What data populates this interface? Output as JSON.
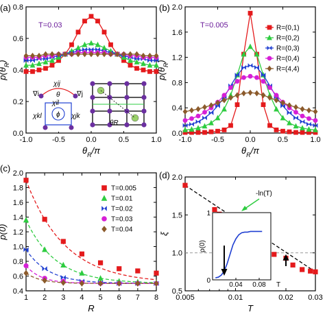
{
  "colors": {
    "red": "#e41a1c",
    "green": "#2ecc40",
    "blue": "#1f3fd1",
    "magenta": "#d61fd6",
    "brown": "#8b5a2b",
    "purple_text": "#6a1b9a",
    "dash_gray": "#999999"
  },
  "chart_data": [
    {
      "panel": "(a)",
      "type": "line",
      "annotation": "T=0.03",
      "xlabel": "θR/π",
      "ylabel": "p(θR)",
      "xlim": [
        -1.0,
        1.0
      ],
      "ylim": [
        0.0,
        0.8
      ],
      "xticks": [
        "-1.0",
        "-0.5",
        "0.0",
        "0.5",
        "1.0"
      ],
      "yticks": [
        "0.0",
        "0.2",
        "0.4",
        "0.6",
        "0.8"
      ],
      "x": [
        -1.0,
        -0.9,
        -0.8,
        -0.7,
        -0.6,
        -0.5,
        -0.4,
        -0.3,
        -0.2,
        -0.1,
        0.0,
        0.1,
        0.2,
        0.3,
        0.4,
        0.5,
        0.6,
        0.7,
        0.8,
        0.9,
        1.0
      ],
      "series": [
        {
          "color": "red",
          "marker": "square",
          "values": [
            0.39,
            0.39,
            0.4,
            0.41,
            0.43,
            0.46,
            0.5,
            0.56,
            0.64,
            0.71,
            0.74,
            0.71,
            0.64,
            0.56,
            0.5,
            0.46,
            0.43,
            0.41,
            0.4,
            0.39,
            0.39
          ]
        },
        {
          "color": "green",
          "marker": "triangle",
          "values": [
            0.43,
            0.43,
            0.44,
            0.45,
            0.46,
            0.48,
            0.5,
            0.52,
            0.54,
            0.56,
            0.57,
            0.56,
            0.54,
            0.52,
            0.5,
            0.48,
            0.46,
            0.45,
            0.44,
            0.43,
            0.43
          ]
        },
        {
          "color": "blue",
          "marker": "bowtie",
          "values": [
            0.46,
            0.46,
            0.47,
            0.47,
            0.48,
            0.49,
            0.5,
            0.51,
            0.52,
            0.53,
            0.53,
            0.53,
            0.52,
            0.51,
            0.5,
            0.49,
            0.48,
            0.47,
            0.47,
            0.46,
            0.46
          ]
        },
        {
          "color": "magenta",
          "marker": "circle",
          "values": [
            0.48,
            0.48,
            0.48,
            0.49,
            0.49,
            0.5,
            0.5,
            0.5,
            0.51,
            0.51,
            0.51,
            0.51,
            0.51,
            0.5,
            0.5,
            0.5,
            0.49,
            0.49,
            0.48,
            0.48,
            0.48
          ]
        },
        {
          "color": "brown",
          "marker": "diamond",
          "values": [
            0.49,
            0.49,
            0.49,
            0.5,
            0.5,
            0.5,
            0.5,
            0.5,
            0.5,
            0.5,
            0.5,
            0.5,
            0.5,
            0.5,
            0.5,
            0.5,
            0.5,
            0.5,
            0.49,
            0.49,
            0.49
          ]
        }
      ],
      "inset_labels": [
        "χij",
        "θ",
        "∇i",
        "∇j",
        "χil",
        "χjk",
        "χkl",
        "ϕ",
        "θR"
      ]
    },
    {
      "panel": "(b)",
      "type": "line",
      "annotation": "T=0.005",
      "xlabel": "θR/π",
      "ylabel": "p(θR)",
      "xlim": [
        -1.0,
        1.0
      ],
      "ylim": [
        0.0,
        2.0
      ],
      "xticks": [
        "-1.0",
        "-0.5",
        "0.0",
        "0.5",
        "1.0"
      ],
      "yticks": [
        "0.0",
        "0.4",
        "0.8",
        "1.2",
        "1.6",
        "2.0"
      ],
      "legend": "top-right",
      "x": [
        -1.0,
        -0.9,
        -0.8,
        -0.7,
        -0.6,
        -0.5,
        -0.4,
        -0.3,
        -0.2,
        -0.1,
        0.0,
        0.1,
        0.2,
        0.3,
        0.4,
        0.5,
        0.6,
        0.7,
        0.8,
        0.9,
        1.0
      ],
      "series": [
        {
          "name": "R=(0,1)",
          "color": "red",
          "marker": "square",
          "values": [
            0.01,
            0.01,
            0.01,
            0.01,
            0.02,
            0.03,
            0.05,
            0.12,
            0.45,
            1.25,
            1.9,
            1.25,
            0.45,
            0.12,
            0.05,
            0.03,
            0.02,
            0.01,
            0.01,
            0.01,
            0.01
          ]
        },
        {
          "name": "R=(0,2)",
          "color": "green",
          "marker": "triangle",
          "values": [
            0.05,
            0.06,
            0.08,
            0.11,
            0.16,
            0.24,
            0.38,
            0.6,
            0.92,
            1.25,
            1.37,
            1.25,
            0.92,
            0.6,
            0.38,
            0.24,
            0.16,
            0.11,
            0.08,
            0.06,
            0.05
          ]
        },
        {
          "name": "R=(0,3)",
          "color": "blue",
          "marker": "bowtie",
          "values": [
            0.12,
            0.14,
            0.18,
            0.24,
            0.32,
            0.43,
            0.57,
            0.75,
            0.92,
            1.04,
            1.07,
            1.04,
            0.92,
            0.75,
            0.57,
            0.43,
            0.32,
            0.24,
            0.18,
            0.14,
            0.12
          ]
        },
        {
          "name": "R=(0,4)",
          "color": "magenta",
          "marker": "circle",
          "values": [
            0.2,
            0.23,
            0.27,
            0.33,
            0.4,
            0.49,
            0.6,
            0.72,
            0.82,
            0.88,
            0.9,
            0.88,
            0.82,
            0.72,
            0.6,
            0.49,
            0.4,
            0.33,
            0.27,
            0.23,
            0.2
          ]
        },
        {
          "name": "R=(4,4)",
          "color": "brown",
          "marker": "diamond",
          "values": [
            0.34,
            0.36,
            0.38,
            0.41,
            0.44,
            0.48,
            0.52,
            0.56,
            0.6,
            0.63,
            0.64,
            0.63,
            0.6,
            0.56,
            0.52,
            0.48,
            0.44,
            0.41,
            0.38,
            0.36,
            0.34
          ]
        }
      ]
    },
    {
      "panel": "(c)",
      "type": "scatter",
      "xlabel": "R",
      "ylabel": "p(0)",
      "xlim": [
        1,
        8
      ],
      "ylim": [
        0.4,
        2.0
      ],
      "xticks": [
        "1",
        "2",
        "3",
        "4",
        "5",
        "6",
        "7",
        "8"
      ],
      "yticks": [
        "0.4",
        "0.6",
        "0.8",
        "1.0",
        "1.2",
        "1.4",
        "1.6",
        "1.8",
        "2.0"
      ],
      "legend": "top-right",
      "x": [
        1,
        2,
        3,
        4,
        5,
        6,
        7,
        8
      ],
      "series": [
        {
          "name": "T=0.005",
          "color": "red",
          "marker": "square",
          "values": [
            1.9,
            1.37,
            1.07,
            0.9,
            0.78,
            0.7,
            0.67,
            0.64
          ]
        },
        {
          "name": "T=0.01",
          "color": "green",
          "marker": "triangle",
          "values": [
            1.36,
            0.96,
            0.75,
            0.64,
            0.57,
            0.53,
            0.52,
            0.51
          ]
        },
        {
          "name": "T=0.02",
          "color": "blue",
          "marker": "bowtie",
          "values": [
            0.96,
            0.7,
            0.58,
            0.53,
            0.51,
            0.5,
            0.5,
            0.5
          ]
        },
        {
          "name": "T=0.03",
          "color": "magenta",
          "marker": "circle",
          "values": [
            0.74,
            0.57,
            0.53,
            0.51,
            0.5,
            0.5,
            0.5,
            0.5
          ]
        },
        {
          "name": "T=0.04",
          "color": "brown",
          "marker": "diamond",
          "values": [
            0.64,
            0.54,
            0.51,
            0.5,
            0.5,
            0.5,
            0.5,
            0.5
          ]
        }
      ]
    },
    {
      "panel": "(d)",
      "type": "scatter",
      "xlabel": "T",
      "ylabel": "ξ",
      "xscale": "log",
      "xlim": [
        0.005,
        0.03
      ],
      "ylim": [
        0.5,
        2.0
      ],
      "xticks": [
        "0.005",
        "0.01",
        "0.02",
        "0.03"
      ],
      "yticks": [
        "0.5",
        "1.0",
        "1.5",
        "2.0"
      ],
      "fit_label": "-ln(T)",
      "points_x": [
        0.005,
        0.0075,
        0.008,
        0.009,
        0.01,
        0.011,
        0.012,
        0.0135,
        0.015,
        0.017,
        0.02,
        0.022,
        0.025,
        0.028,
        0.03
      ],
      "points_y": [
        1.89,
        1.57,
        1.51,
        1.44,
        1.35,
        1.28,
        1.2,
        1.14,
        1.08,
        0.98,
        0.93,
        0.84,
        0.78,
        0.76,
        0.75
      ],
      "inset": {
        "xlabel": "T",
        "ylabel": "ρ(0)",
        "xlim": [
          0,
          0.1
        ],
        "ylim": [
          0,
          1
        ],
        "xticks": [
          "0.04",
          "0.08"
        ],
        "yticks": [
          "0",
          "1"
        ],
        "x": [
          0.005,
          0.01,
          0.015,
          0.02,
          0.025,
          0.03,
          0.035,
          0.04,
          0.045,
          0.05,
          0.055,
          0.06,
          0.065,
          0.07,
          0.075,
          0.08,
          0.085
        ],
        "values": [
          0.03,
          0.04,
          0.07,
          0.13,
          0.24,
          0.38,
          0.52,
          0.61,
          0.67,
          0.7,
          0.71,
          0.71,
          0.72,
          0.72,
          0.72,
          0.72,
          0.72
        ]
      }
    }
  ]
}
